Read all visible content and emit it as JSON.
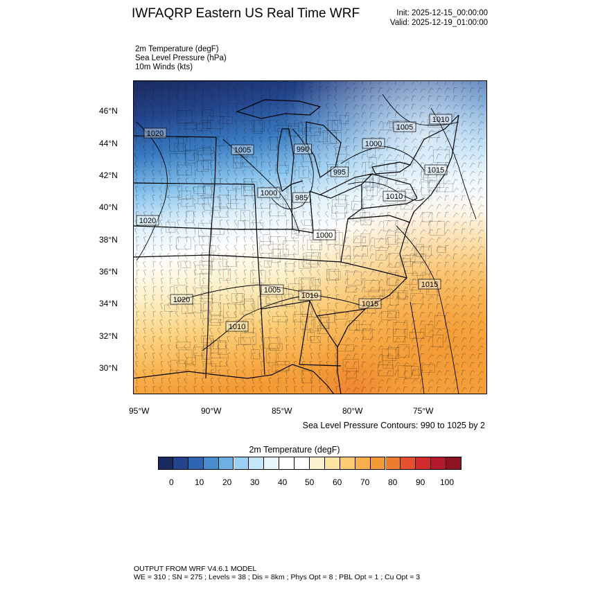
{
  "title": "IWFAQRP Eastern US Real Time WRF",
  "init_label": "Init: 2025-12-15_00:00:00",
  "valid_label": "Valid: 2025-12-19_01:00:00",
  "fields": [
    "2m Temperature   (degF)",
    "Sea Level Pressure   (hPa)",
    "10m Winds   (kts)"
  ],
  "lat_labels": [
    "46°N",
    "44°N",
    "42°N",
    "40°N",
    "38°N",
    "36°N",
    "34°N",
    "32°N",
    "30°N"
  ],
  "lon_labels": [
    "95°W",
    "90°W",
    "85°W",
    "80°W",
    "75°W"
  ],
  "pressure_labels": [
    "1020",
    "1005",
    "990",
    "995",
    "1000",
    "1005",
    "1010",
    "1015",
    "1010",
    "1000",
    "985",
    "1020",
    "1000",
    "1015",
    "1005",
    "1010",
    "1015",
    "1020",
    "1010"
  ],
  "contour_note": "Sea Level Pressure Contours: 990 to 1025 by 2",
  "colorbar": {
    "title": "2m Temperature  (degF)",
    "ticks": [
      "0",
      "10",
      "20",
      "30",
      "40",
      "50",
      "60",
      "70",
      "80",
      "90",
      "100"
    ],
    "colors": [
      "#1a2a5e",
      "#23448c",
      "#2e66b0",
      "#4a8dcc",
      "#6fb0e2",
      "#9bd0f2",
      "#c4e6f9",
      "#e9f5fc",
      "#ffffff",
      "#ffffff",
      "#fdf2cf",
      "#fde4a3",
      "#fccc73",
      "#f9b04c",
      "#f39a35",
      "#ef7b2e",
      "#e5512f",
      "#d12b2b",
      "#b5182a",
      "#8e1322"
    ]
  },
  "footer": {
    "line1": "OUTPUT FROM WRF V4.6.1 MODEL",
    "line2": "WE = 310 ; SN = 275 ; Levels = 38 ; Dis = 8km ; Phys Opt = 8 ; PBL Opt = 1 ; Cu Opt = 3"
  }
}
